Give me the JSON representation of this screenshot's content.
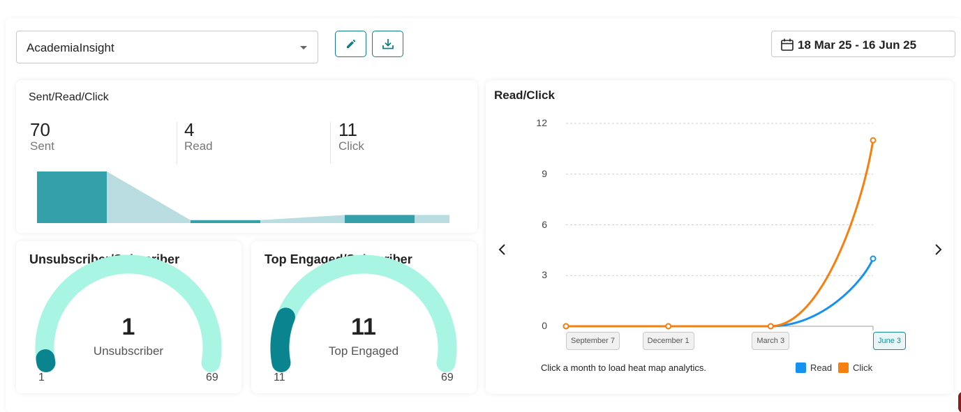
{
  "toolbar": {
    "selected_list": "AcademiaInsight",
    "edit_icon": "pencil-icon",
    "download_icon": "download-icon",
    "date_range": "18 Mar 25 - 16 Jun 25",
    "calendar_icon": "calendar-icon"
  },
  "colors": {
    "teal_dark": "#0a8590",
    "teal_bar": "#34a0aa",
    "teal_light": "#b9dde0",
    "mint": "#a8f5e4",
    "read": "#1592f0",
    "click": "#f57f0f"
  },
  "funnel": {
    "title": "Sent/Read/Click",
    "stats": [
      {
        "value": "70",
        "label": "Sent"
      },
      {
        "value": "4",
        "label": "Read"
      },
      {
        "value": "11",
        "label": "Click"
      }
    ]
  },
  "unsub_gauge": {
    "title": "Unsubscriber/Subscriber",
    "value": "1",
    "label": "Unsubscriber",
    "min_label": "1",
    "max_label": "69",
    "fraction": 0.0145
  },
  "engaged_gauge": {
    "title": "Top Engaged/Subscriber",
    "value": "11",
    "label": "Top Engaged",
    "min_label": "11",
    "max_label": "69",
    "fraction": 0.159
  },
  "chart_data": [
    {
      "type": "bar",
      "title": "Sent/Read/Click",
      "categories": [
        "Sent",
        "Read",
        "Click"
      ],
      "values": [
        70,
        4,
        11
      ]
    },
    {
      "type": "line",
      "title": "Read/Click",
      "x": [
        "September 7",
        "December 1",
        "March 3",
        "June 3"
      ],
      "y_ticks": [
        "0",
        "3",
        "6",
        "9",
        "12"
      ],
      "ylim": [
        0,
        12
      ],
      "grid": true,
      "legend_position": "bottom-right",
      "series": [
        {
          "name": "Read",
          "values": [
            0,
            0,
            0,
            4
          ]
        },
        {
          "name": "Click",
          "values": [
            0,
            0,
            0,
            11
          ]
        }
      ],
      "active_x": "June 3"
    }
  ],
  "trend": {
    "hint": "Click a month to load heat map analytics.",
    "prev_icon": "chevron-left-icon",
    "next_icon": "chevron-right-icon"
  }
}
